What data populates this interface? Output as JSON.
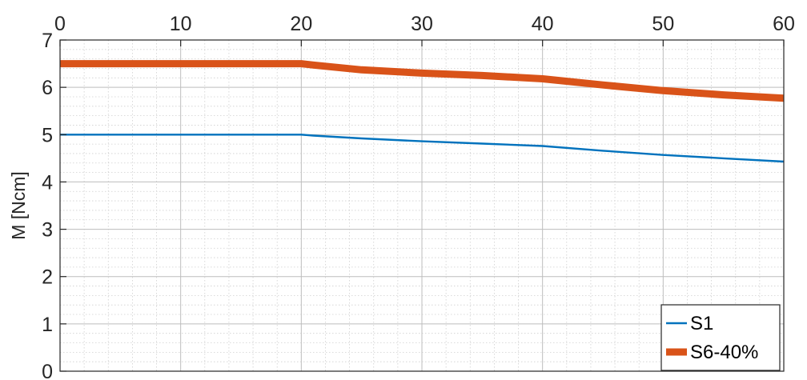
{
  "chart_data": {
    "type": "line",
    "title": "",
    "xlabel": "",
    "ylabel": "M [Ncm]",
    "xlim": [
      0,
      60
    ],
    "ylim": [
      0,
      7
    ],
    "x_axis_location": "top",
    "x_ticks": [
      0,
      10,
      20,
      30,
      40,
      50,
      60
    ],
    "y_ticks": [
      0,
      1,
      2,
      3,
      4,
      5,
      6,
      7
    ],
    "grid": true,
    "minor_grid": true,
    "legend_location": "bottom-right",
    "series": [
      {
        "name": "S1",
        "color": "#0072BD",
        "x": [
          0,
          5,
          10,
          15,
          20,
          21,
          25,
          30,
          35,
          40,
          45,
          50,
          55,
          60
        ],
        "y": [
          5.0,
          5.0,
          5.0,
          5.0,
          5.0,
          4.98,
          4.92,
          4.86,
          4.81,
          4.76,
          4.66,
          4.57,
          4.5,
          4.43
        ]
      },
      {
        "name": "S6-40%",
        "color": "#D95319",
        "x": [
          0,
          5,
          10,
          15,
          20,
          21,
          25,
          30,
          35,
          40,
          45,
          50,
          55,
          60
        ],
        "y": [
          6.5,
          6.5,
          6.5,
          6.5,
          6.5,
          6.47,
          6.37,
          6.3,
          6.25,
          6.18,
          6.05,
          5.93,
          5.84,
          5.77
        ]
      }
    ]
  }
}
